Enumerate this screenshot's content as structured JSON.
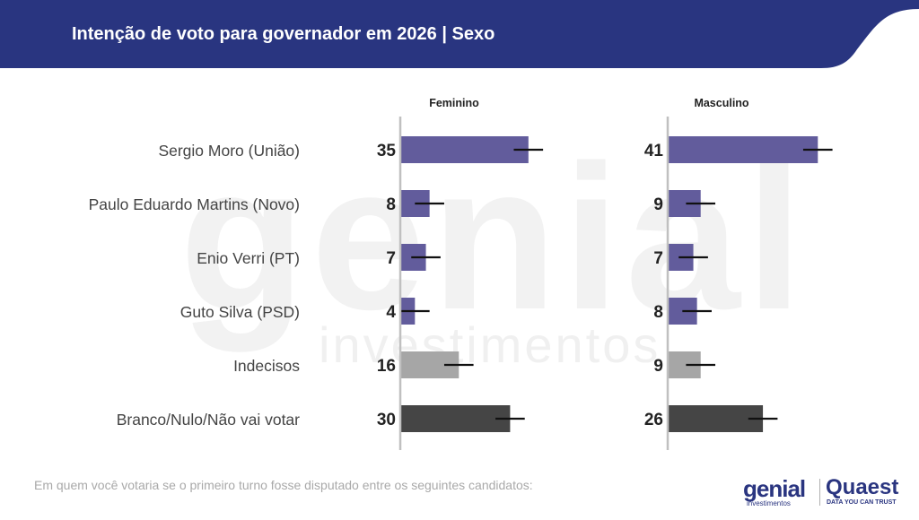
{
  "header": {
    "title": "Intenção de voto para governador em 2026 | Sexo",
    "bg_color": "#293580"
  },
  "footnote": "Em quem você votaria se o primeiro turno fosse disputado entre os seguintes candidatos:",
  "logos": {
    "genial": "genial",
    "genial_sub": "investimentos",
    "quaest": "Quaest",
    "quaest_sub": "DATA YOU CAN TRUST"
  },
  "watermark": {
    "main": "genial",
    "sub": "investimentos"
  },
  "colors": {
    "candidate": "#625c9c",
    "undecided": "#a6a6a6",
    "blank": "#454545",
    "axis": "#c0c0c0",
    "error_bar": "#111111"
  },
  "chart_data": {
    "type": "bar",
    "orientation": "horizontal",
    "categories": [
      "Sergio Moro (União)",
      "Paulo Eduardo Martins (Novo)",
      "Enio Verri (PT)",
      "Guto Silva (PSD)",
      "Indecisos",
      "Branco/Nulo/Não vai votar"
    ],
    "category_colors": [
      "candidate",
      "candidate",
      "candidate",
      "candidate",
      "undecided",
      "blank"
    ],
    "series": [
      {
        "name": "Feminino",
        "values": [
          35,
          8,
          7,
          4,
          16,
          30
        ]
      },
      {
        "name": "Masculino",
        "values": [
          41,
          9,
          7,
          8,
          9,
          26
        ]
      }
    ],
    "error_margin": 4,
    "xlim": [
      0,
      50
    ],
    "grid": false,
    "legend": "panel titles above each column"
  }
}
